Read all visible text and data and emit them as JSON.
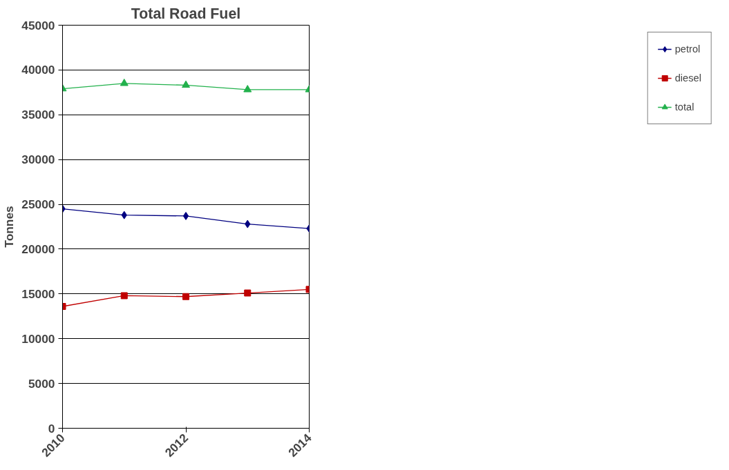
{
  "chart_data": {
    "type": "line",
    "title": "Total Road Fuel",
    "ylabel": "Tonnes",
    "x": [
      2010,
      2011,
      2012,
      2013,
      2014
    ],
    "xlim": [
      2010,
      2014
    ],
    "xticks": [
      2010,
      2012,
      2014
    ],
    "ylim": [
      0,
      45000
    ],
    "yticks": [
      0,
      5000,
      10000,
      15000,
      20000,
      25000,
      30000,
      35000,
      40000,
      45000
    ],
    "grid": "y",
    "legend": "right",
    "series": [
      {
        "name": "petrol",
        "color": "#000080",
        "marker": "diamond",
        "values": [
          24500,
          23800,
          23700,
          22800,
          22300
        ]
      },
      {
        "name": "diesel",
        "color": "#c00000",
        "marker": "square",
        "values": [
          13600,
          14800,
          14700,
          15100,
          15500
        ]
      },
      {
        "name": "total",
        "color": "#22b14c",
        "marker": "triangle",
        "values": [
          37900,
          38500,
          38300,
          37800,
          37800
        ]
      }
    ]
  }
}
